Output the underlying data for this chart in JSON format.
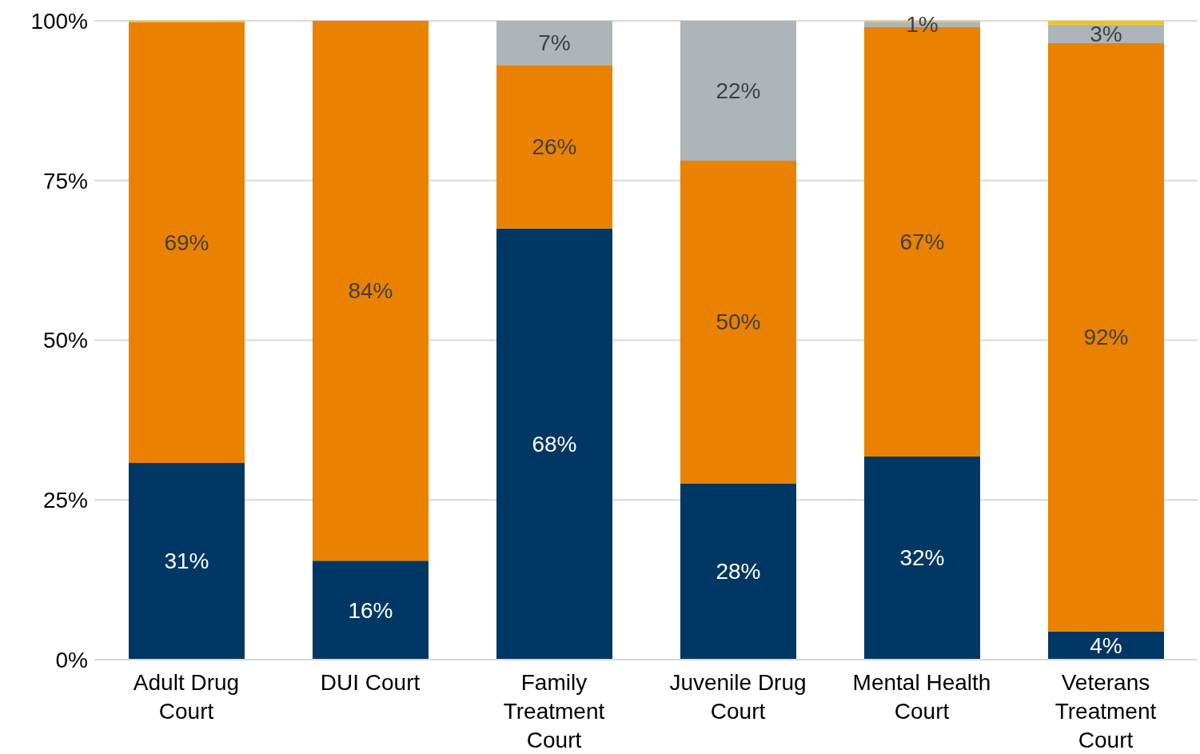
{
  "chart_data": {
    "type": "bar",
    "stacked": true,
    "categories": [
      "Adult Drug Court",
      "DUI Court",
      "Family Treatment Court",
      "Juvenile Drug Court",
      "Mental Health Court",
      "Veterans Treatment Court"
    ],
    "series": [
      {
        "color": "#003764",
        "values": [
          30.8,
          15.5,
          67.5,
          27.6,
          31.8,
          4.4
        ],
        "value_labels": [
          "31%",
          "16%",
          "68%",
          "28%",
          "32%",
          "4%"
        ]
      },
      {
        "color": "#ea8100",
        "values": [
          69,
          84.5,
          25.6,
          50.5,
          67.2,
          92.1
        ],
        "value_labels": [
          "69%",
          "84%",
          "26%",
          "50%",
          "67%",
          "92%"
        ]
      },
      {
        "color": "#adb5bb",
        "values": [
          0,
          0,
          6.9,
          21.9,
          0.8,
          2.9
        ],
        "value_labels": [
          null,
          null,
          "7%",
          "22%",
          "1%",
          "3%"
        ]
      },
      {
        "color": "#f2c500",
        "values": [
          0.2,
          0,
          0,
          0,
          0.2,
          0.6
        ],
        "value_labels": [
          null,
          null,
          null,
          null,
          null,
          null
        ]
      }
    ],
    "ylim": [
      0,
      100
    ],
    "yticks": [
      {
        "value": 0,
        "label": "0%"
      },
      {
        "value": 25,
        "label": "25%"
      },
      {
        "value": 50,
        "label": "50%"
      },
      {
        "value": 75,
        "label": "75%"
      },
      {
        "value": 100,
        "label": "100%"
      }
    ],
    "grid": "y"
  }
}
